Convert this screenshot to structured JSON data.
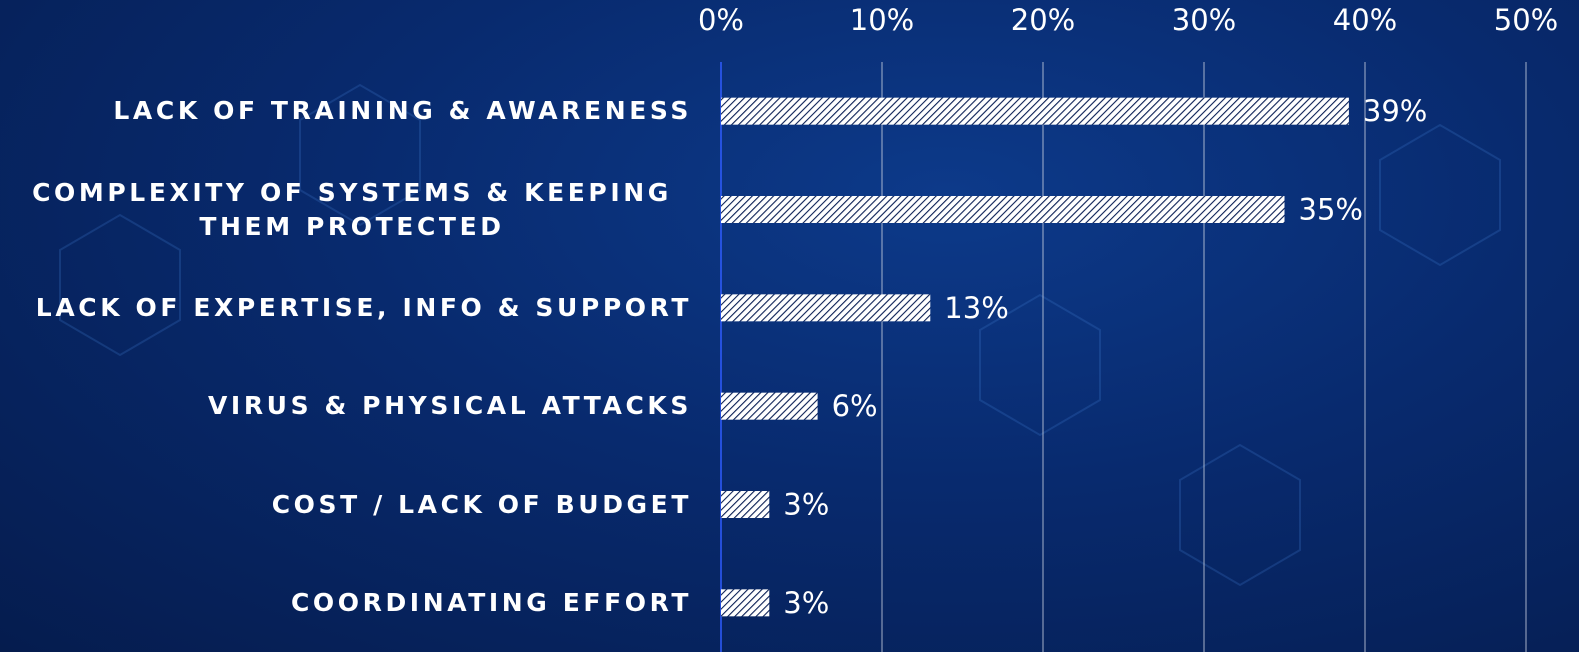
{
  "chart_data": {
    "type": "bar",
    "orientation": "horizontal",
    "categories": [
      "LACK OF TRAINING & AWARENESS",
      "COMPLEXITY OF SYSTEMS & KEEPING THEM PROTECTED",
      "LACK OF EXPERTISE, INFO & SUPPORT",
      "VIRUS & PHYSICAL ATTACKS",
      "COST / LACK OF BUDGET",
      "COORDINATING EFFORT"
    ],
    "values": [
      39,
      35,
      13,
      6,
      3,
      3
    ],
    "value_labels": [
      "39%",
      "35%",
      "13%",
      "6%",
      "3%",
      "3%"
    ],
    "color": "#ffffff",
    "xlim": [
      0,
      50
    ],
    "xticks": [
      {
        "value": 0,
        "label": "0%"
      },
      {
        "value": 10,
        "label": "10%"
      },
      {
        "value": 20,
        "label": "20%"
      },
      {
        "value": 30,
        "label": "30%"
      },
      {
        "value": 40,
        "label": "40%"
      },
      {
        "value": 50,
        "label": "50%"
      }
    ],
    "grid": true
  }
}
